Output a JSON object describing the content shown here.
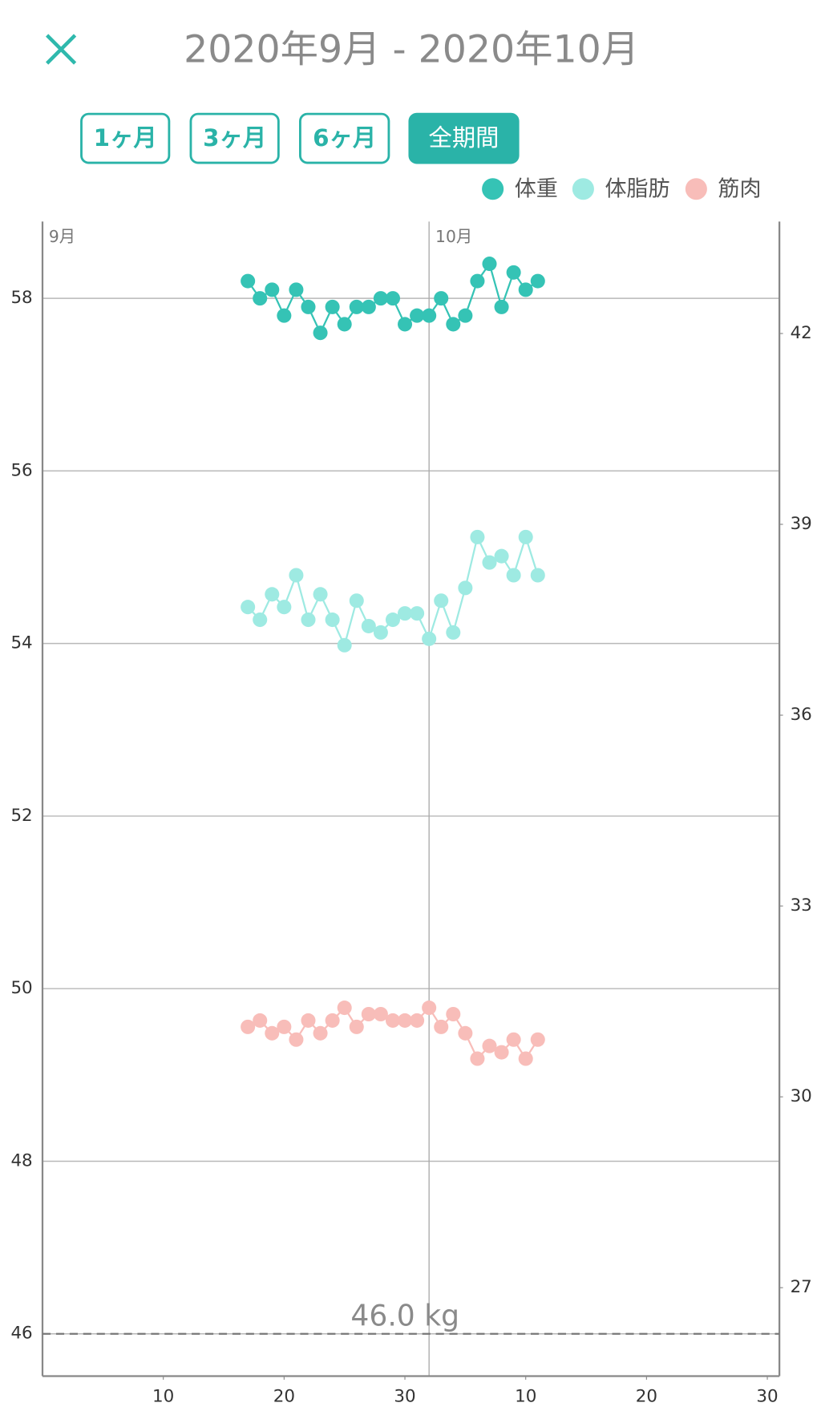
{
  "header": {
    "title": "2020年9月 - 2020年10月"
  },
  "range_buttons": [
    {
      "label": "1ヶ月",
      "selected": false
    },
    {
      "label": "3ヶ月",
      "selected": false
    },
    {
      "label": "6ヶ月",
      "selected": false
    },
    {
      "label": "全期間",
      "selected": true
    }
  ],
  "chart_data": {
    "type": "line",
    "x": [
      17,
      18,
      19,
      20,
      21,
      22,
      23,
      24,
      25,
      26,
      27,
      28,
      29,
      30,
      31,
      32,
      33,
      34,
      35,
      36,
      37,
      38,
      39,
      40,
      41
    ],
    "xlim": [
      0,
      61
    ],
    "xticks": [
      10,
      20,
      30,
      {
        "value": 40,
        "label": "10"
      },
      {
        "value": 50,
        "label": "20"
      },
      {
        "value": 60,
        "label": "30"
      }
    ],
    "month_marks": [
      {
        "value": 0,
        "label": "9月"
      },
      {
        "value": 32,
        "label": "10月"
      }
    ],
    "ylim": [
      45.51,
      58.89
    ],
    "yticks": [
      46,
      48,
      50,
      52,
      54,
      56,
      58
    ],
    "y2lim": [
      25.61,
      43.76
    ],
    "y2ticks": [
      27,
      30,
      33,
      36,
      39,
      42
    ],
    "grid": true,
    "legend": "top-right",
    "reference": {
      "value": 46,
      "label": "46.0 kg"
    },
    "series": [
      {
        "name": "体重",
        "color": "#35c3b5",
        "axis": "y",
        "values": [
          58.2,
          58.0,
          58.1,
          57.8,
          58.1,
          57.9,
          57.6,
          57.9,
          57.7,
          57.9,
          57.9,
          58.0,
          58.0,
          57.7,
          57.8,
          57.8,
          58.0,
          57.7,
          57.8,
          58.2,
          58.4,
          57.9,
          58.3,
          58.1,
          58.2
        ]
      },
      {
        "name": "体脂肪",
        "color": "#9eeae2",
        "axis": "y2",
        "values": [
          37.7,
          37.5,
          37.9,
          37.7,
          38.2,
          37.5,
          37.9,
          37.5,
          37.1,
          37.8,
          37.4,
          37.3,
          37.5,
          37.6,
          37.6,
          37.2,
          37.8,
          37.3,
          38.0,
          38.8,
          38.4,
          38.5,
          38.2,
          38.8,
          38.2
        ]
      },
      {
        "name": "筋肉",
        "color": "#f8bdb9",
        "axis": "y2",
        "values": [
          31.1,
          31.2,
          31.0,
          31.1,
          30.9,
          31.2,
          31.0,
          31.2,
          31.4,
          31.1,
          31.3,
          31.3,
          31.2,
          31.2,
          31.2,
          31.4,
          31.1,
          31.3,
          31.0,
          30.6,
          30.8,
          30.7,
          30.9,
          30.6,
          30.9
        ]
      }
    ]
  }
}
